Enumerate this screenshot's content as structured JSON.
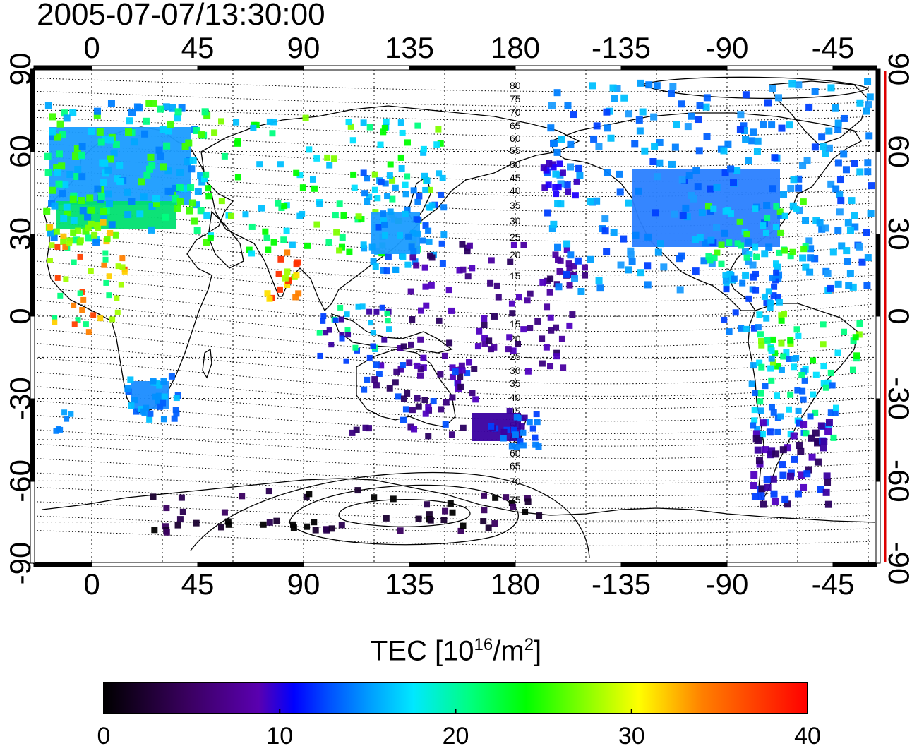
{
  "timestamp": "2005-07-07/13:30:00",
  "map": {
    "top_lon_ticks": [
      "0",
      "45",
      "90",
      "135",
      "180",
      "-135",
      "-90",
      "-45"
    ],
    "bottom_lon_ticks": [
      "0",
      "45",
      "90",
      "135",
      "180",
      "-135",
      "-90",
      "-45"
    ],
    "left_lat_ticks": [
      "90",
      "60",
      "30",
      "0",
      "-30",
      "-60",
      "-90"
    ],
    "right_lat_ticks": [
      "90",
      "60",
      "30",
      "0",
      "-30",
      "-60",
      "-90"
    ],
    "mag_lat_labels_north": [
      "80",
      "75",
      "70",
      "65",
      "60",
      "55",
      "50",
      "45",
      "40",
      "35",
      "30",
      "25",
      "20",
      "15"
    ],
    "mag_lat_labels_south": [
      "15",
      "20",
      "25",
      "30",
      "35",
      "40",
      "45",
      "50",
      "55",
      "60",
      "65",
      "70",
      "75"
    ]
  },
  "colorbar": {
    "title_main": "TEC  [10",
    "title_sup1": "16",
    "title_mid": "/m",
    "title_sup2": "2",
    "title_end": "]",
    "ticks": [
      "0",
      "10",
      "20",
      "30",
      "40"
    ],
    "range": [
      0,
      40
    ]
  },
  "colors": {
    "accent_line": "#dd0000",
    "gradient": [
      "#000000",
      "#3a0060",
      "#5a00b0",
      "#0000ff",
      "#0080ff",
      "#00ffff",
      "#00ff80",
      "#00ff00",
      "#a0ff00",
      "#ffff00",
      "#ff8000",
      "#ff0000"
    ]
  }
}
